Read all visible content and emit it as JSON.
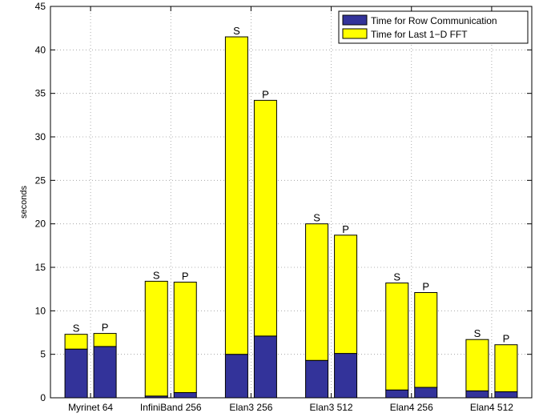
{
  "chart_data": {
    "type": "bar",
    "stacked": true,
    "ylabel": "seconds",
    "xlabel": "",
    "title": "",
    "ylim": [
      0,
      45
    ],
    "yticks": [
      0,
      5,
      10,
      15,
      20,
      25,
      30,
      35,
      40,
      45
    ],
    "grid": true,
    "legend_position": "top-right",
    "categories": [
      "Myrinet 64",
      "InfiniBand 256",
      "Elan3 256",
      "Elan3 512",
      "Elan4 256",
      "Elan4 512"
    ],
    "bar_labels": [
      "S",
      "P"
    ],
    "series": [
      {
        "name": "Time for Row Communication",
        "color": "#33339a",
        "values": [
          [
            5.6,
            5.9
          ],
          [
            0.2,
            0.6
          ],
          [
            5.0,
            7.1
          ],
          [
            4.3,
            5.1
          ],
          [
            0.9,
            1.2
          ],
          [
            0.8,
            0.7
          ]
        ]
      },
      {
        "name": "Time for Last 1−D FFT",
        "color": "#ffff00",
        "values": [
          [
            1.7,
            1.5
          ],
          [
            13.2,
            12.7
          ],
          [
            36.5,
            27.1
          ],
          [
            15.7,
            13.6
          ],
          [
            12.3,
            10.9
          ],
          [
            5.9,
            5.4
          ]
        ]
      }
    ]
  }
}
